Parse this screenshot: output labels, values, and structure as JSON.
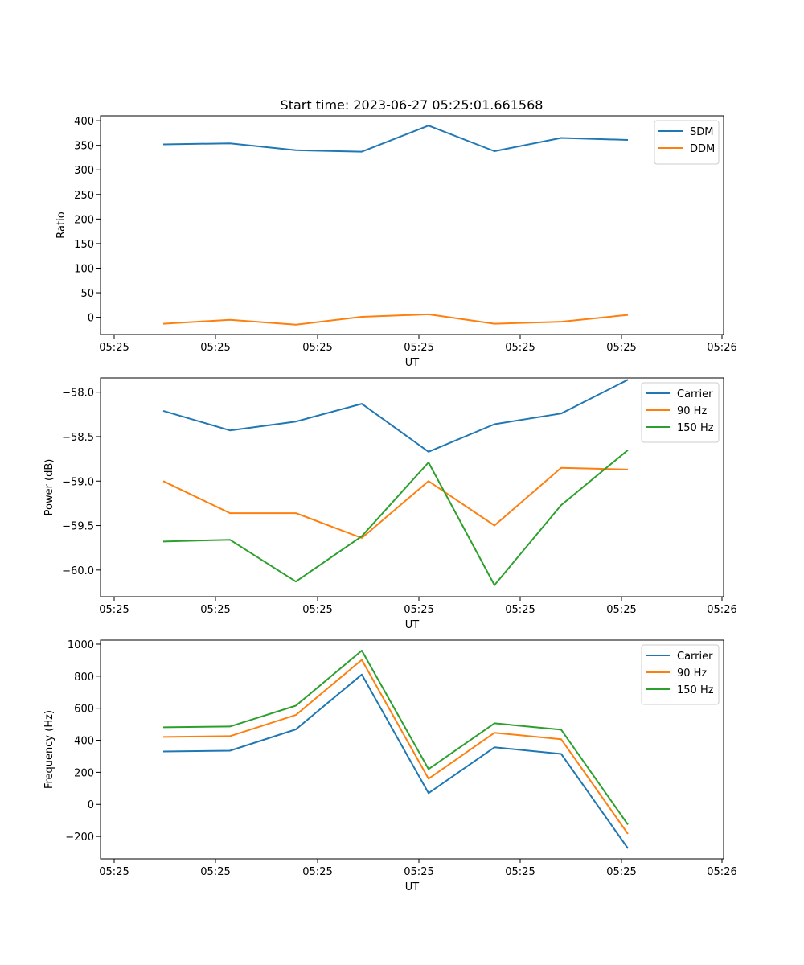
{
  "figure": {
    "title": "Start time: 2023-06-27 05:25:01.661568"
  },
  "chart_data": [
    {
      "type": "line",
      "title": "Start time: 2023-06-27 05:25:01.661568",
      "xlabel": "UT",
      "ylabel": "Ratio",
      "x_tick_labels": [
        "05:25",
        "05:25",
        "05:25",
        "05:25",
        "05:25",
        "05:25",
        "05:25",
        "05:26"
      ],
      "y_ticks": [
        0,
        50,
        100,
        150,
        200,
        250,
        300,
        350,
        400
      ],
      "y_tick_labels": [
        "0",
        "50",
        "100",
        "150",
        "200",
        "250",
        "300",
        "350",
        "400"
      ],
      "ylim": [
        -35,
        410
      ],
      "legend_position": "top-right",
      "series": [
        {
          "name": "SDM",
          "color": "#1f77b4",
          "values": [
            352,
            354,
            340,
            337,
            390,
            338,
            365,
            361
          ]
        },
        {
          "name": "DDM",
          "color": "#ff7f0e",
          "values": [
            -13,
            -5,
            -15,
            1,
            6,
            -13,
            -9,
            5
          ]
        }
      ]
    },
    {
      "type": "line",
      "xlabel": "UT",
      "ylabel": "Power (dB)",
      "x_tick_labels": [
        "05:25",
        "05:25",
        "05:25",
        "05:25",
        "05:25",
        "05:25",
        "05:25",
        "05:26"
      ],
      "y_ticks": [
        -60.0,
        -59.5,
        -59.0,
        -58.5,
        -58.0
      ],
      "y_tick_labels": [
        "−60.0",
        "−59.5",
        "−59.0",
        "−58.5",
        "−58.0"
      ],
      "ylim": [
        -60.3,
        -57.84
      ],
      "legend_position": "top-right",
      "series": [
        {
          "name": "Carrier",
          "color": "#1f77b4",
          "values": [
            -58.21,
            -58.43,
            -58.33,
            -58.13,
            -58.67,
            -58.36,
            -58.24,
            -57.86
          ]
        },
        {
          "name": "90 Hz",
          "color": "#ff7f0e",
          "values": [
            -59.0,
            -59.36,
            -59.36,
            -59.64,
            -59.0,
            -59.5,
            -58.85,
            -58.87
          ]
        },
        {
          "name": "150 Hz",
          "color": "#2ca02c",
          "values": [
            -59.68,
            -59.66,
            -60.13,
            -59.62,
            -58.79,
            -60.17,
            -59.27,
            -58.65
          ]
        }
      ]
    },
    {
      "type": "line",
      "xlabel": "UT",
      "ylabel": "Frequency (Hz)",
      "x_tick_labels": [
        "05:25",
        "05:25",
        "05:25",
        "05:25",
        "05:25",
        "05:25",
        "05:25",
        "05:26"
      ],
      "y_ticks": [
        -200,
        0,
        200,
        400,
        600,
        800,
        1000
      ],
      "y_tick_labels": [
        "−200",
        "0",
        "200",
        "400",
        "600",
        "800",
        "1000"
      ],
      "ylim": [
        -340,
        1025
      ],
      "legend_position": "top-right",
      "series": [
        {
          "name": "Carrier",
          "color": "#1f77b4",
          "values": [
            330,
            335,
            468,
            810,
            70,
            356,
            315,
            -275
          ]
        },
        {
          "name": "90 Hz",
          "color": "#ff7f0e",
          "values": [
            421,
            426,
            558,
            902,
            160,
            447,
            406,
            -184
          ]
        },
        {
          "name": "150 Hz",
          "color": "#2ca02c",
          "values": [
            481,
            486,
            616,
            960,
            220,
            506,
            466,
            -126
          ]
        }
      ]
    }
  ]
}
